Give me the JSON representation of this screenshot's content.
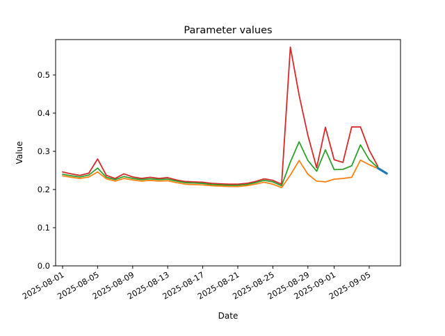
{
  "chart_data": {
    "type": "line",
    "title": "Parameter values",
    "xlabel": "Date",
    "ylabel": "Value",
    "grid": false,
    "legend": "none",
    "background_color": "#ffffff",
    "spine_color": "#000000",
    "ylim": [
      0.0,
      0.593
    ],
    "y_ticks": [
      "0.0",
      "0.1",
      "0.2",
      "0.3",
      "0.4",
      "0.5"
    ],
    "y_tick_values": [
      0.0,
      0.1,
      0.2,
      0.3,
      0.4,
      0.5
    ],
    "x_tick_labels": [
      "2025-08-01",
      "2025-08-05",
      "2025-08-09",
      "2025-08-13",
      "2025-08-17",
      "2025-08-21",
      "2025-08-25",
      "2025-08-29",
      "2025-09-01",
      "2025-09-05"
    ],
    "x_tick_day_indices": [
      0,
      4,
      8,
      12,
      16,
      20,
      24,
      28,
      31,
      35
    ],
    "x_dates": [
      "2025-08-01",
      "2025-08-02",
      "2025-08-03",
      "2025-08-04",
      "2025-08-05",
      "2025-08-06",
      "2025-08-07",
      "2025-08-08",
      "2025-08-09",
      "2025-08-10",
      "2025-08-11",
      "2025-08-12",
      "2025-08-13",
      "2025-08-14",
      "2025-08-15",
      "2025-08-16",
      "2025-08-17",
      "2025-08-18",
      "2025-08-19",
      "2025-08-20",
      "2025-08-21",
      "2025-08-22",
      "2025-08-23",
      "2025-08-24",
      "2025-08-25",
      "2025-08-26",
      "2025-08-27",
      "2025-08-28",
      "2025-08-29",
      "2025-08-30",
      "2025-08-31",
      "2025-09-01",
      "2025-09-02",
      "2025-09-03",
      "2025-09-04",
      "2025-09-05",
      "2025-09-06",
      "2025-09-07"
    ],
    "series": [
      {
        "name": "red",
        "color": "#d62728",
        "line_width": 1.8,
        "start_index": 0,
        "values": [
          0.246,
          0.241,
          0.237,
          0.243,
          0.28,
          0.237,
          0.229,
          0.241,
          0.233,
          0.229,
          0.232,
          0.229,
          0.231,
          0.225,
          0.221,
          0.22,
          0.219,
          0.216,
          0.215,
          0.214,
          0.214,
          0.216,
          0.221,
          0.228,
          0.224,
          0.214,
          0.573,
          0.447,
          0.342,
          0.257,
          0.363,
          0.278,
          0.271,
          0.364,
          0.364,
          0.303,
          0.26
        ]
      },
      {
        "name": "green",
        "color": "#2ca02c",
        "line_width": 1.8,
        "start_index": 0,
        "values": [
          0.24,
          0.236,
          0.233,
          0.238,
          0.256,
          0.232,
          0.226,
          0.234,
          0.229,
          0.226,
          0.228,
          0.226,
          0.227,
          0.222,
          0.218,
          0.217,
          0.216,
          0.213,
          0.212,
          0.211,
          0.211,
          0.213,
          0.218,
          0.224,
          0.22,
          0.21,
          0.272,
          0.325,
          0.276,
          0.248,
          0.304,
          0.252,
          0.253,
          0.262,
          0.317,
          0.278,
          0.257
        ]
      },
      {
        "name": "orange",
        "color": "#ff7f0e",
        "line_width": 1.8,
        "start_index": 0,
        "values": [
          0.236,
          0.232,
          0.229,
          0.233,
          0.246,
          0.228,
          0.222,
          0.229,
          0.225,
          0.222,
          0.224,
          0.222,
          0.223,
          0.218,
          0.214,
          0.213,
          0.212,
          0.21,
          0.209,
          0.208,
          0.208,
          0.21,
          0.214,
          0.219,
          0.214,
          0.205,
          0.238,
          0.276,
          0.24,
          0.222,
          0.22,
          0.227,
          0.229,
          0.232,
          0.277,
          0.265,
          0.255
        ]
      },
      {
        "name": "blue-highlight",
        "color": "#1f77b4",
        "line_width": 3.2,
        "start_index": 36,
        "values": [
          0.256,
          0.242
        ]
      }
    ]
  }
}
